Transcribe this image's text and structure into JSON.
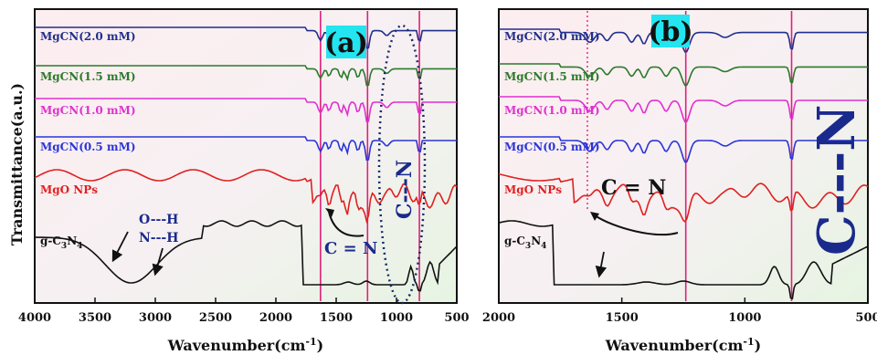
{
  "shared_ylabel": "Transmittance(a.u.)",
  "colors": {
    "mgcn20": "#1f2f8c",
    "mgcn15": "#2a7a2a",
    "mgcn10": "#e030d0",
    "mgcn05": "#2a35d8",
    "mgo": "#e02020",
    "gcn": "#111111",
    "marker": "#e0207a",
    "highlight": "#22e5f0",
    "ellipse": "#1a2a6a"
  },
  "chart_data": [
    {
      "type": "line",
      "panel_label": "(a)",
      "xlabel": "Wavenumber(cm",
      "xlabel_sup": "-1",
      "xlabel_close": ")",
      "xlim": [
        4000,
        500
      ],
      "xticks": [
        4000,
        3500,
        3000,
        2500,
        2000,
        1500,
        1000,
        500
      ],
      "x_reversed": true,
      "vertical_markers": [
        1630,
        1240,
        810
      ],
      "annotations": {
        "cn_double": "C = N",
        "cn_single": "C---N",
        "oh": "O---H",
        "nh": "N---H"
      },
      "series": [
        {
          "name": "MgCN(2.0 mM)",
          "key": "mgcn20"
        },
        {
          "name": "MgCN(1.5 mM)",
          "key": "mgcn15"
        },
        {
          "name": "MgCN(1.0 mM)",
          "key": "mgcn10"
        },
        {
          "name": "MgCN(0.5 mM)",
          "key": "mgcn05"
        },
        {
          "name": "MgO NPs",
          "key": "mgo"
        },
        {
          "name": "g-C3N4",
          "display": [
            "g-C",
            "3",
            "N",
            "4"
          ],
          "key": "gcn"
        }
      ]
    },
    {
      "type": "line",
      "panel_label": "(b)",
      "xlabel": "Wavenumber(cm",
      "xlabel_sup": "-1",
      "xlabel_close": ")",
      "xlim": [
        2000,
        500
      ],
      "xticks": [
        2000,
        1500,
        1000,
        500
      ],
      "x_reversed": true,
      "vertical_markers": [
        1240,
        810
      ],
      "dotted_marker": 1640,
      "annotations": {
        "cn_double": "C = N",
        "cn_single": "C---N"
      },
      "series": [
        {
          "name": "MgCN(2.0 mM)",
          "key": "mgcn20"
        },
        {
          "name": "MgCN(1.5 mM)",
          "key": "mgcn15"
        },
        {
          "name": "MgCN(1.0 mM)",
          "key": "mgcn10"
        },
        {
          "name": "MgCN(0.5 mM)",
          "key": "mgcn05"
        },
        {
          "name": "MgO NPs",
          "key": "mgo"
        },
        {
          "name": "g-C3N4",
          "display": [
            "g-C",
            "3",
            "N",
            "4"
          ],
          "key": "gcn"
        }
      ]
    }
  ]
}
